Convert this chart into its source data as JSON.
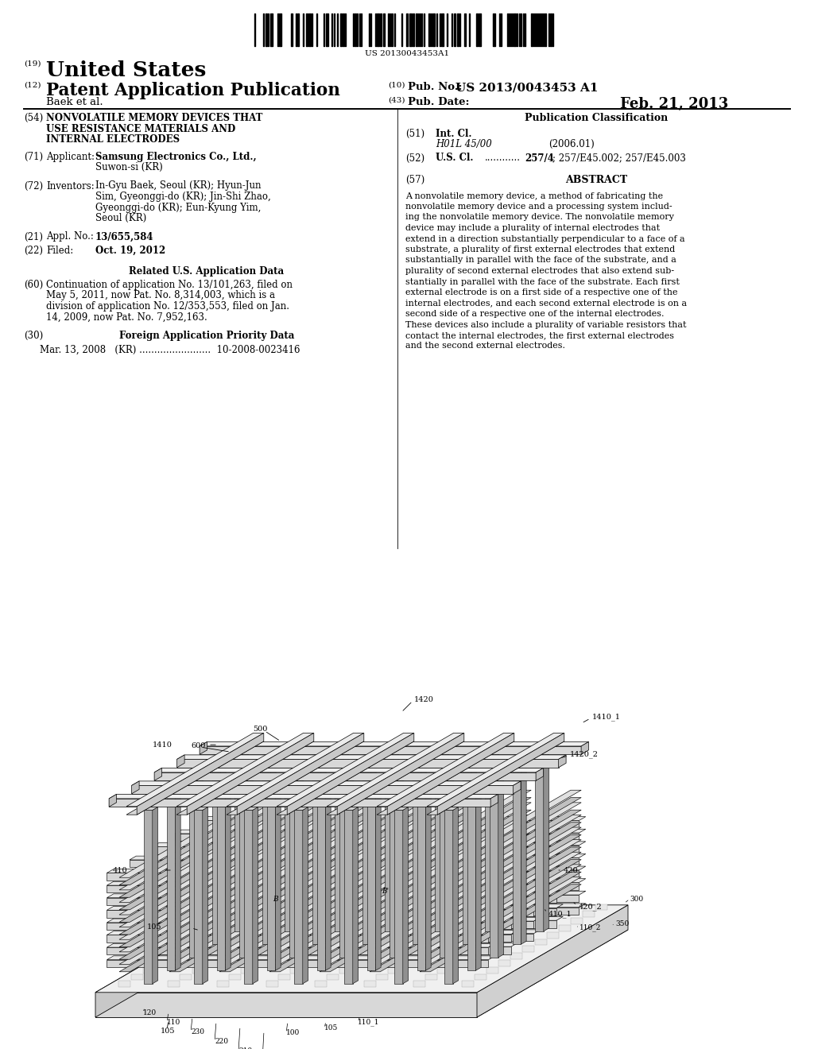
{
  "bg_color": "#ffffff",
  "barcode_text": "US 20130043453A1",
  "country": "United States",
  "pub_type": "Patent Application Publication",
  "pub_num_label": "Pub. No.:",
  "pub_num": "US 2013/0043453 A1",
  "pub_date_label": "Pub. Date:",
  "pub_date": "Feb. 21, 2013",
  "author_line": "Baek et al.",
  "num_19": "(19)",
  "num_12": "(12)",
  "num_10": "(10)",
  "num_43": "(43)",
  "num_54": "(54)",
  "num_71": "(71)",
  "num_72": "(72)",
  "num_21": "(21)",
  "num_22": "(22)",
  "num_60": "(60)",
  "num_30": "(30)",
  "num_51": "(51)",
  "num_52": "(52)",
  "num_57": "(57)",
  "title_54_line1": "NONVOLATILE MEMORY DEVICES THAT",
  "title_54_line2": "USE RESISTANCE MATERIALS AND",
  "title_54_line3": "INTERNAL ELECTRODES",
  "applicant_label": "Applicant:",
  "applicant_name": "Samsung Electronics Co., Ltd.,",
  "applicant_loc": "Suwon-si (KR)",
  "inventors_label": "Inventors:",
  "inv_line1": "In-Gyu Baek, Seoul (KR); Hyun-Jun",
  "inv_line2": "Sim, Gyeonggi-do (KR); Jin-Shi Zhao,",
  "inv_line3": "Gyeonggi-do (KR); Eun-Kyung Yim,",
  "inv_line4": "Seoul (KR)",
  "appl_no_label": "Appl. No.:",
  "appl_no": "13/655,584",
  "filed_label": "Filed:",
  "filed": "Oct. 19, 2012",
  "related_us_header": "Related U.S. Application Data",
  "rel_line1": "Continuation of application No. 13/101,263, filed on",
  "rel_line2": "May 5, 2011, now Pat. No. 8,314,003, which is a",
  "rel_line3": "division of application No. 12/353,553, filed on Jan.",
  "rel_line4": "14, 2009, now Pat. No. 7,952,163.",
  "foreign_header": "Foreign Application Priority Data",
  "foreign_data": "Mar. 13, 2008   (KR) ........................  10-2008-0023416",
  "pub_class_header": "Publication Classification",
  "int_cl_label": "Int. Cl.",
  "int_cl_value": "H01L 45/00",
  "int_cl_year": "(2006.01)",
  "us_cl_label": "U.S. Cl.",
  "us_cl_dots": "............",
  "us_cl_value": "257/4; 257/E45.002; 257/E45.003",
  "abstract_header": "ABSTRACT",
  "abs_line1": "A nonvolatile memory device, a method of fabricating the",
  "abs_line2": "nonvolatile memory device and a processing system includ-",
  "abs_line3": "ing the nonvolatile memory device. The nonvolatile memory",
  "abs_line4": "device may include a plurality of internal electrodes that",
  "abs_line5": "extend in a direction substantially perpendicular to a face of a",
  "abs_line6": "substrate, a plurality of first external electrodes that extend",
  "abs_line7": "substantially in parallel with the face of the substrate, and a",
  "abs_line8": "plurality of second external electrodes that also extend sub-",
  "abs_line9": "stantially in parallel with the face of the substrate. Each first",
  "abs_line10": "external electrode is on a first side of a respective one of the",
  "abs_line11": "internal electrodes, and each second external electrode is on a",
  "abs_line12": "second side of a respective one of the internal electrodes.",
  "abs_line13": "These devices also include a plurality of variable resistors that",
  "abs_line14": "contact the internal electrodes, the first external electrodes",
  "abs_line15": "and the second external electrodes."
}
